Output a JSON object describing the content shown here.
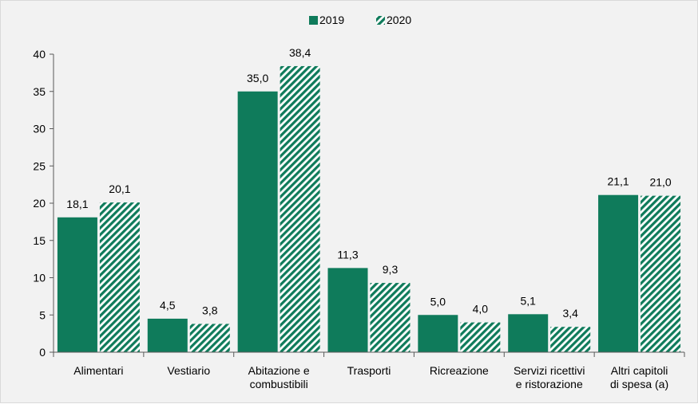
{
  "chart_data": {
    "type": "bar",
    "categories": [
      [
        "Alimentari"
      ],
      [
        "Vestiario"
      ],
      [
        "Abitazione e",
        "combustibili"
      ],
      [
        "Trasporti"
      ],
      [
        "Ricreazione"
      ],
      [
        "Servizi ricettivi",
        "e ristorazione"
      ],
      [
        "Altri capitoli",
        "di spesa (a)"
      ]
    ],
    "series": [
      {
        "name": "2019",
        "values": [
          18.1,
          4.5,
          35.0,
          11.3,
          5.0,
          5.1,
          21.1
        ],
        "labels": [
          "18,1",
          "4,5",
          "35,0",
          "11,3",
          "5,0",
          "5,1",
          "21,1"
        ],
        "color": "#0f7b5b",
        "pattern": "solid"
      },
      {
        "name": "2020",
        "values": [
          20.1,
          3.8,
          38.4,
          9.3,
          4.0,
          3.4,
          21.0
        ],
        "labels": [
          "20,1",
          "3,8",
          "38,4",
          "9,3",
          "4,0",
          "3,4",
          "21,0"
        ],
        "color": "#0f7b5b",
        "pattern": "diagonal-hatch"
      }
    ],
    "ylim": [
      0,
      40
    ],
    "yticks": [
      0,
      5,
      10,
      15,
      20,
      25,
      30,
      35,
      40
    ],
    "legend": "top-center",
    "grid": false
  }
}
